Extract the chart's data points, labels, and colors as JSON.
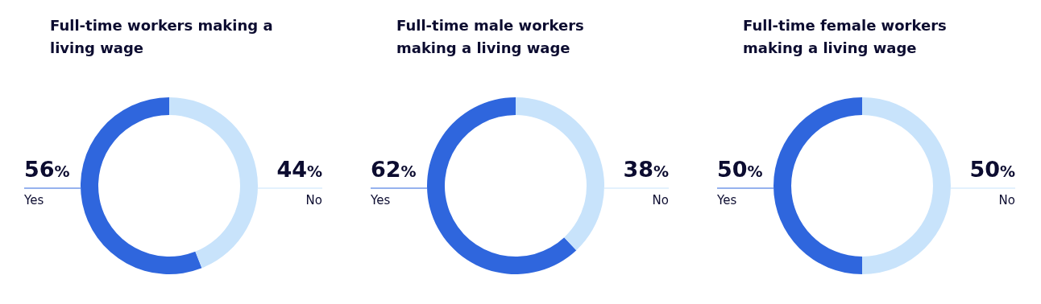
{
  "chart_data": [
    {
      "type": "donut",
      "title": "Full-time workers making a living wage",
      "categories": [
        "Yes",
        "No"
      ],
      "values": [
        56,
        44
      ],
      "colors": [
        "#2f66dd",
        "#c8e3fb"
      ],
      "value_labels": [
        "56%",
        "44%"
      ]
    },
    {
      "type": "donut",
      "title": "Full-time male workers making a living wage",
      "categories": [
        "Yes",
        "No"
      ],
      "values": [
        62,
        38
      ],
      "colors": [
        "#2f66dd",
        "#c8e3fb"
      ],
      "value_labels": [
        "62%",
        "38%"
      ]
    },
    {
      "type": "donut",
      "title": "Full-time female workers making a living wage",
      "categories": [
        "Yes",
        "No"
      ],
      "values": [
        50,
        50
      ],
      "colors": [
        "#2f66dd",
        "#c8e3fb"
      ],
      "value_labels": [
        "50%",
        "50%"
      ]
    }
  ]
}
